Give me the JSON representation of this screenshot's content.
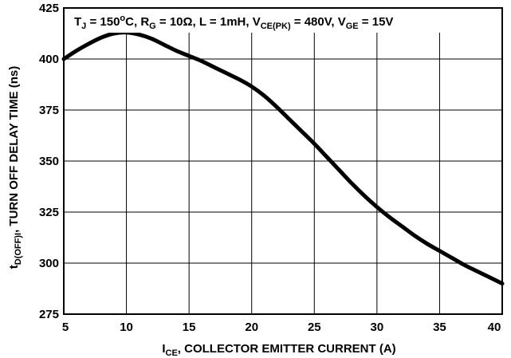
{
  "chart_data": {
    "type": "line",
    "title": "",
    "conditions": {
      "tj_symbol": "T",
      "tj_sub": "J",
      "tj_value": " = 150",
      "tj_sup": "o",
      "tj_unit": "C, ",
      "rg_symbol": "R",
      "rg_sub": "G",
      "rg_value": " = 10Ω, L = 1mH, ",
      "vce_symbol": "V",
      "vce_sub": "CE(PK)",
      "vce_value": " = 480V, ",
      "vge_symbol": "V",
      "vge_sub": "GE",
      "vge_value": " = 15V"
    },
    "xlabel": {
      "symbol": "I",
      "sub": "CE",
      "text": ", COLLECTOR EMITTER CURRENT (A)"
    },
    "ylabel": {
      "symbol": "t",
      "sub": "D(OFF)I",
      "text": ", TURN OFF DELAY TIME (ns)"
    },
    "xlim": [
      5,
      40
    ],
    "ylim": [
      275,
      425
    ],
    "xticks": [
      "5",
      "10",
      "15",
      "20",
      "25",
      "30",
      "35",
      "40"
    ],
    "yticks": [
      "275",
      "300",
      "325",
      "350",
      "375",
      "400",
      "425"
    ],
    "xtick_values": [
      5,
      10,
      15,
      20,
      25,
      30,
      35,
      40
    ],
    "ytick_values": [
      275,
      300,
      325,
      350,
      375,
      400,
      425
    ],
    "grid": true,
    "series": [
      {
        "color": "#000000",
        "x": [
          5,
          6,
          7,
          8,
          9,
          10,
          11,
          12,
          13,
          14,
          15,
          16,
          17,
          18,
          19,
          20,
          21,
          22,
          23,
          24,
          25,
          26,
          27,
          28,
          29,
          30,
          31,
          32,
          33,
          34,
          35,
          36,
          37,
          38,
          39,
          40
        ],
        "y": [
          400,
          404,
          407.5,
          410.5,
          412.5,
          413,
          412,
          410,
          407,
          404,
          401.5,
          399,
          396,
          393,
          390,
          386.5,
          382,
          376.5,
          370.5,
          364.5,
          358.5,
          352,
          345.5,
          339,
          333,
          327.5,
          322.5,
          318,
          313.5,
          309.5,
          306,
          302.5,
          299,
          296,
          293,
          290
        ]
      }
    ]
  }
}
